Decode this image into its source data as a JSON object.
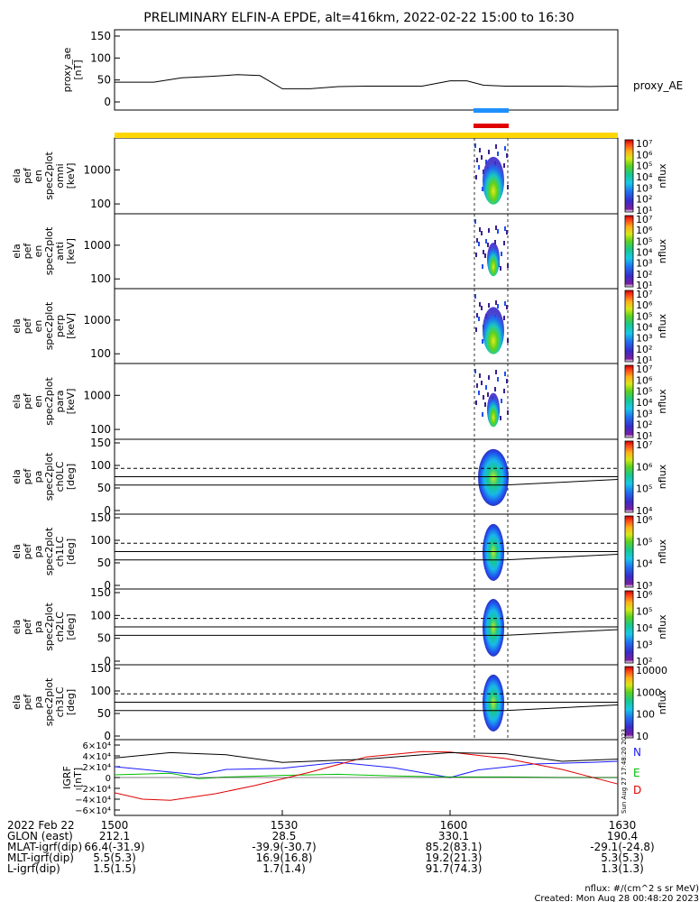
{
  "title": "PRELIMINARY ELFIN-A EPDE, alt=416km, 2022-02-22 15:00 to 16:30",
  "side_labels": {
    "proxy_ae": "proxy_AE",
    "mag_N": "N",
    "mag_E": "E",
    "mag_D": "D",
    "stamp": "Sun Aug 27 17:48:20 2023"
  },
  "colors": {
    "mag_total": "#000000",
    "mag_N": "#1a1aff",
    "mag_E": "#00c000",
    "mag_D": "#e00000",
    "bar_blue": "#1e90ff",
    "bar_red": "#e00000",
    "bar_yellow": "#ffd700"
  },
  "panels": [
    {
      "id": "proxy_ae",
      "ylabel": [
        "proxy_ae",
        "[nT]"
      ],
      "yticks": [
        "150",
        "100",
        "50",
        "0"
      ]
    },
    {
      "id": "omni",
      "ylabel": [
        "ela",
        "pef",
        "en",
        "spec2plot",
        "omni",
        "[keV]"
      ],
      "yticks": [
        "1000",
        "100"
      ],
      "cb_ticks": [
        "10⁷",
        "10⁶",
        "10⁵",
        "10⁴",
        "10³",
        "10²",
        "10¹"
      ],
      "cb_label": "nflux"
    },
    {
      "id": "anti",
      "ylabel": [
        "ela",
        "pef",
        "en",
        "spec2plot",
        "anti",
        "[keV]"
      ],
      "yticks": [
        "1000",
        "100"
      ],
      "cb_ticks": [
        "10⁷",
        "10⁶",
        "10⁵",
        "10⁴",
        "10³",
        "10²",
        "10¹"
      ],
      "cb_label": "nflux"
    },
    {
      "id": "perp",
      "ylabel": [
        "ela",
        "pef",
        "en",
        "spec2plot",
        "perp",
        "[keV]"
      ],
      "yticks": [
        "1000",
        "100"
      ],
      "cb_ticks": [
        "10⁷",
        "10⁶",
        "10⁵",
        "10⁴",
        "10³",
        "10²",
        "10¹"
      ],
      "cb_label": "nflux"
    },
    {
      "id": "para",
      "ylabel": [
        "ela",
        "pef",
        "en",
        "spec2plot",
        "para",
        "[keV]"
      ],
      "yticks": [
        "1000",
        "100"
      ],
      "cb_ticks": [
        "10⁷",
        "10⁶",
        "10⁵",
        "10⁴",
        "10³",
        "10²",
        "10¹"
      ],
      "cb_label": "nflux"
    },
    {
      "id": "ch0LC",
      "ylabel": [
        "ela",
        "pef",
        "pa",
        "spec2plot",
        "ch0LC",
        "[deg]"
      ],
      "yticks": [
        "150",
        "100",
        "50",
        "0"
      ],
      "cb_ticks": [
        "10⁷",
        "10⁶",
        "10⁵",
        "10⁴"
      ],
      "cb_label": "nflux"
    },
    {
      "id": "ch1LC",
      "ylabel": [
        "ela",
        "pef",
        "pa",
        "spec2plot",
        "ch1LC",
        "[deg]"
      ],
      "yticks": [
        "150",
        "100",
        "50",
        "0"
      ],
      "cb_ticks": [
        "10⁶",
        "10⁵",
        "10⁴",
        "10³"
      ],
      "cb_label": "nflux"
    },
    {
      "id": "ch2LC",
      "ylabel": [
        "ela",
        "pef",
        "pa",
        "spec2plot",
        "ch2LC",
        "[deg]"
      ],
      "yticks": [
        "150",
        "100",
        "50",
        "0"
      ],
      "cb_ticks": [
        "10⁶",
        "10⁵",
        "10⁴",
        "10³",
        "10²"
      ],
      "cb_label": "nflux"
    },
    {
      "id": "ch3LC",
      "ylabel": [
        "ela",
        "pef",
        "pa",
        "spec2plot",
        "ch3LC",
        "[deg]"
      ],
      "yticks": [
        "150",
        "100",
        "50",
        "0"
      ],
      "cb_ticks": [
        "10000",
        "1000",
        "100",
        "10"
      ],
      "cb_label": "nflux"
    },
    {
      "id": "igrf",
      "ylabel": [
        "IGRF",
        "[nT]"
      ],
      "yticks": [
        "6×10⁴",
        "4×10⁴",
        "2×10⁴",
        "0",
        "−2×10⁴",
        "−4×10⁴",
        "−6×10⁴"
      ]
    }
  ],
  "footer": {
    "rows": [
      {
        "label": "2022 Feb 22",
        "values": [
          "1500",
          "1530",
          "1600",
          "1630"
        ]
      },
      {
        "label": "GLON (east)",
        "values": [
          "212.1",
          "28.5",
          "330.1",
          "190.4"
        ]
      },
      {
        "label": "MLAT-igrf(dip)",
        "values": [
          "66.4(-31.9)",
          "-39.9(-30.7)",
          "85.2(83.1)",
          "-29.1(-24.8)"
        ]
      },
      {
        "label": "MLT-igrf(dip)",
        "values": [
          "5.5(5.3)",
          "16.9(16.8)",
          "19.2(21.3)",
          "5.3(5.3)"
        ]
      },
      {
        "label": "L-igrf(dip)",
        "values": [
          "1.5(1.5)",
          "1.7(1.4)",
          "91.7(74.3)",
          "1.3(1.3)"
        ]
      }
    ],
    "units_note": "nflux: #/(cm^2 s sr MeV)",
    "created": "Created: Mon Aug 28 00:48:20 2023"
  },
  "chart_data": {
    "type": "line",
    "title": "PRELIMINARY ELFIN-A EPDE, alt=416km, 2022-02-22 15:00 to 16:30",
    "x_ticks": [
      "1500",
      "1530",
      "1600",
      "1630"
    ],
    "xlim": [
      "15:00",
      "16:30"
    ],
    "series": [
      {
        "name": "proxy_AE",
        "x": [
          "15:00",
          "15:07",
          "15:12",
          "15:17",
          "15:22",
          "15:26",
          "15:30",
          "15:35",
          "15:40",
          "15:45",
          "15:50",
          "15:55",
          "16:00",
          "16:03",
          "16:06",
          "16:10",
          "16:15",
          "16:20",
          "16:25",
          "16:30"
        ],
        "values": [
          45,
          45,
          55,
          58,
          62,
          60,
          30,
          30,
          35,
          36,
          36,
          36,
          48,
          48,
          38,
          36,
          36,
          36,
          35,
          36
        ],
        "ylim": [
          0,
          150
        ]
      },
      {
        "name": "N",
        "x": [
          "15:00",
          "15:08",
          "15:15",
          "15:20",
          "15:30",
          "15:40",
          "15:50",
          "16:00",
          "16:05",
          "16:15",
          "16:25",
          "16:30"
        ],
        "values": [
          20000,
          12000,
          5000,
          15000,
          17000,
          28000,
          18000,
          0,
          14000,
          25000,
          28000,
          30000
        ],
        "ylim": [
          -60000,
          60000
        ]
      },
      {
        "name": "E",
        "x": [
          "15:00",
          "15:10",
          "15:15",
          "15:20",
          "15:30",
          "15:40",
          "15:50",
          "16:00",
          "16:10",
          "16:20",
          "16:30"
        ],
        "values": [
          5000,
          8000,
          -2000,
          1000,
          4000,
          6000,
          3000,
          1000,
          1000,
          0,
          0
        ],
        "ylim": [
          -60000,
          60000
        ]
      },
      {
        "name": "D",
        "x": [
          "15:00",
          "15:05",
          "15:10",
          "15:18",
          "15:25",
          "15:35",
          "15:45",
          "15:55",
          "16:00",
          "16:10",
          "16:20",
          "16:30"
        ],
        "values": [
          -28000,
          -40000,
          -42000,
          -30000,
          -15000,
          10000,
          38000,
          48000,
          47000,
          35000,
          15000,
          -12000
        ],
        "ylim": [
          -60000,
          60000
        ]
      }
    ],
    "spectrogram_window": [
      "16:04",
      "16:13"
    ],
    "pa_reference_lines_deg": [
      110,
      90,
      70
    ]
  }
}
